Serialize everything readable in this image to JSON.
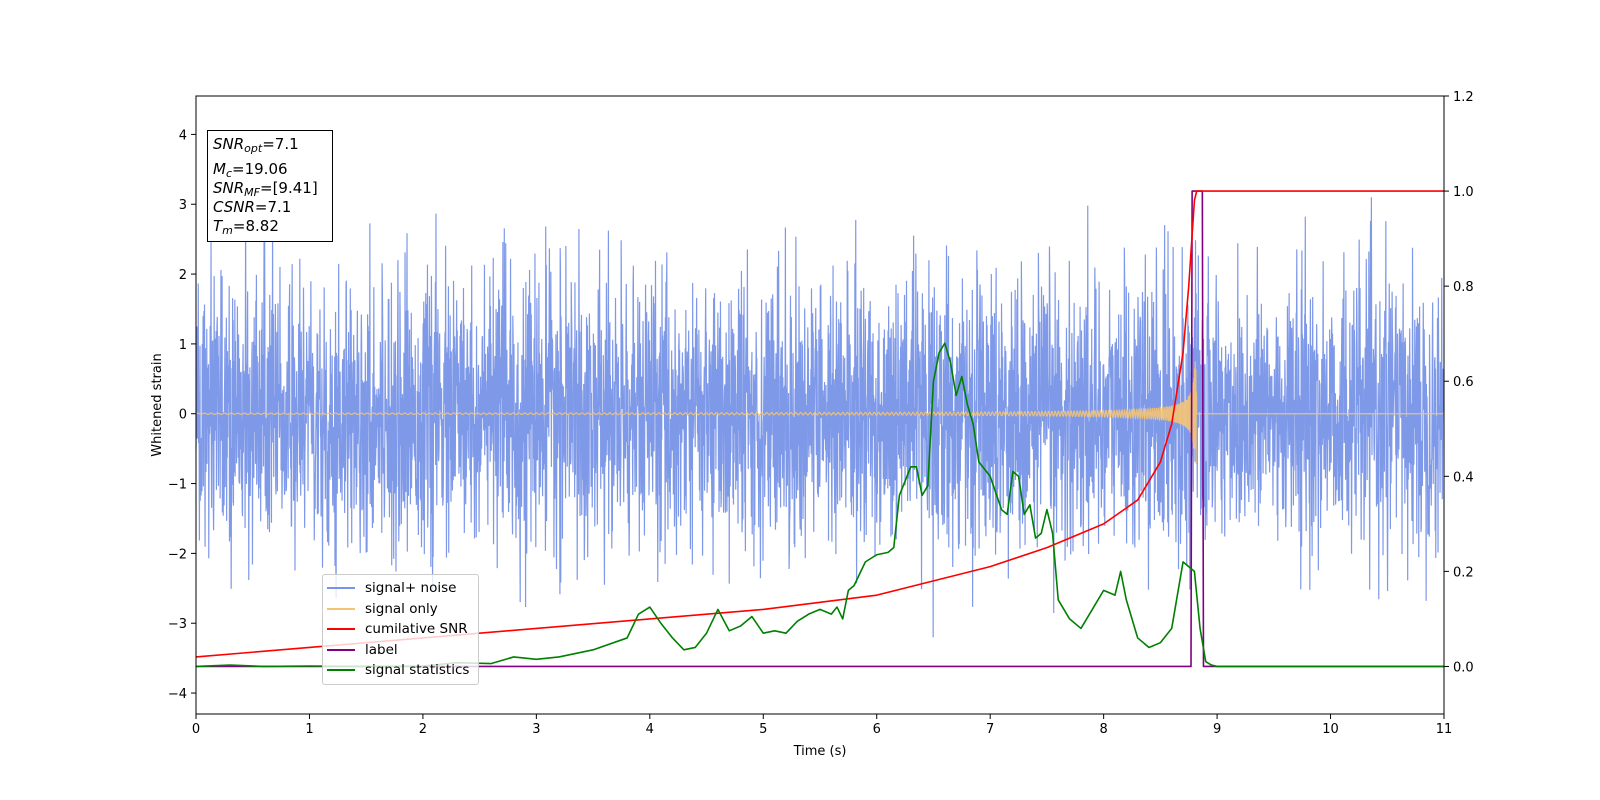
{
  "chart_data": {
    "type": "line",
    "xlabel": "Time (s)",
    "ylabel": "Whitened strain",
    "xlim": [
      0,
      11
    ],
    "ylim_left": [
      -4.3,
      4.55
    ],
    "ylim_right": [
      -0.1,
      1.2
    ],
    "x_ticks": [
      0,
      1,
      2,
      3,
      4,
      5,
      6,
      7,
      8,
      9,
      10,
      11
    ],
    "y_ticks_left": [
      -4,
      -3,
      -2,
      -1,
      0,
      1,
      2,
      3,
      4
    ],
    "y_ticks_right": [
      0.0,
      0.2,
      0.4,
      0.6,
      0.8,
      1.0,
      1.2
    ],
    "y_tick_labels_left": [
      "−4",
      "−3",
      "−2",
      "−1",
      "0",
      "1",
      "2",
      "3",
      "4"
    ],
    "y_tick_labels_right": [
      "0.0",
      "0.2",
      "0.4",
      "0.6",
      "0.8",
      "1.0",
      "1.2"
    ],
    "legend_placement": "lower-left",
    "annotation": {
      "snr_opt_value": "=7.1",
      "mc_value": "=19.06",
      "snr_mf_value": "=[9.41]",
      "csnr_value": "=7.1",
      "tm_value": "=8.82"
    },
    "series": [
      {
        "name": "signal+ noise",
        "axis": "left",
        "color": "#7893e8",
        "description_level": "noise-dominated, amplitude roughly ±1.4 with peaks near ±3"
      },
      {
        "name": "signal only",
        "axis": "left",
        "color": "#f5c473",
        "chirp_start": 6.0,
        "chirp_end": 8.82
      },
      {
        "name": "cumilative SNR",
        "axis": "right",
        "color": "#ff0000",
        "x": [
          0,
          1,
          2,
          3,
          4,
          5,
          6,
          6.5,
          7,
          7.5,
          8,
          8.3,
          8.5,
          8.6,
          8.7,
          8.75,
          8.8,
          8.82,
          11
        ],
        "y": [
          0.02,
          0.04,
          0.06,
          0.08,
          0.1,
          0.12,
          0.15,
          0.18,
          0.21,
          0.25,
          0.3,
          0.35,
          0.43,
          0.51,
          0.66,
          0.8,
          0.98,
          1.0,
          1.0
        ]
      },
      {
        "name": "label",
        "axis": "right",
        "color": "#800080",
        "x": [
          0,
          8.77,
          8.78,
          8.87,
          8.88,
          11
        ],
        "y": [
          0,
          0,
          1.0,
          1.0,
          0,
          0
        ]
      },
      {
        "name": "signal statistics",
        "axis": "right",
        "color": "#008000",
        "x": [
          0,
          0.3,
          0.6,
          1,
          1.5,
          2,
          2.3,
          2.6,
          2.8,
          3.0,
          3.2,
          3.5,
          3.8,
          3.9,
          4.0,
          4.1,
          4.2,
          4.3,
          4.4,
          4.5,
          4.6,
          4.7,
          4.8,
          4.9,
          5.0,
          5.1,
          5.2,
          5.3,
          5.4,
          5.5,
          5.6,
          5.65,
          5.7,
          5.75,
          5.8,
          5.9,
          6.0,
          6.1,
          6.15,
          6.2,
          6.3,
          6.35,
          6.4,
          6.45,
          6.5,
          6.55,
          6.6,
          6.65,
          6.7,
          6.75,
          6.8,
          6.85,
          6.9,
          7.0,
          7.1,
          7.15,
          7.2,
          7.25,
          7.3,
          7.35,
          7.4,
          7.45,
          7.5,
          7.55,
          7.6,
          7.7,
          7.8,
          7.9,
          8.0,
          8.1,
          8.15,
          8.2,
          8.3,
          8.4,
          8.5,
          8.6,
          8.7,
          8.75,
          8.8,
          8.85,
          8.9,
          8.95,
          9.0,
          9.1,
          9.5,
          10,
          11
        ],
        "y": [
          0.0,
          0.003,
          0.0,
          0.001,
          0.0,
          0.001,
          0.008,
          0.006,
          0.02,
          0.015,
          0.02,
          0.035,
          0.06,
          0.11,
          0.125,
          0.09,
          0.06,
          0.035,
          0.04,
          0.07,
          0.12,
          0.075,
          0.085,
          0.105,
          0.07,
          0.075,
          0.07,
          0.095,
          0.11,
          0.12,
          0.11,
          0.125,
          0.1,
          0.16,
          0.17,
          0.22,
          0.235,
          0.24,
          0.25,
          0.36,
          0.42,
          0.42,
          0.36,
          0.38,
          0.6,
          0.66,
          0.68,
          0.64,
          0.57,
          0.61,
          0.55,
          0.51,
          0.43,
          0.4,
          0.33,
          0.32,
          0.41,
          0.4,
          0.32,
          0.34,
          0.27,
          0.28,
          0.33,
          0.28,
          0.14,
          0.1,
          0.08,
          0.12,
          0.16,
          0.15,
          0.2,
          0.14,
          0.06,
          0.04,
          0.05,
          0.08,
          0.22,
          0.21,
          0.2,
          0.08,
          0.01,
          0.003,
          0.0,
          0.0,
          0.0,
          0.0,
          0.0
        ]
      }
    ]
  }
}
